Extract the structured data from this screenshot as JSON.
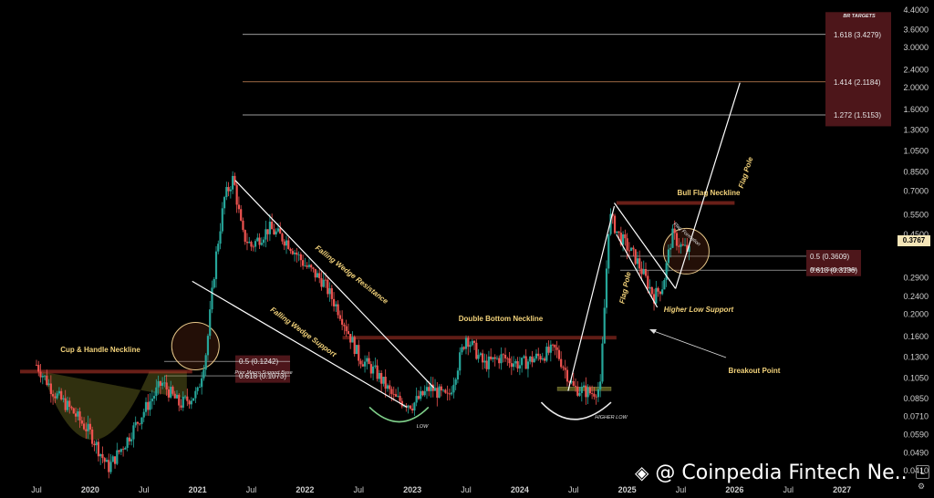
{
  "chart_data": {
    "type": "candlestick",
    "symbol_scale": "log",
    "y_ticks": [
      "4.4000",
      "3.6000",
      "3.0000",
      "2.4000",
      "2.0000",
      "1.6000",
      "1.3000",
      "1.0500",
      "0.8500",
      "0.7000",
      "0.5500",
      "0.4500",
      "0.2900",
      "0.2400",
      "0.2000",
      "0.1600",
      "0.1300",
      "0.1050",
      "0.0850",
      "0.0710",
      "0.0590",
      "0.0490",
      "0.0410"
    ],
    "y_range": [
      0.036,
      4.6
    ],
    "x_ticks": [
      "Jul",
      "2020",
      "Jul",
      "2021",
      "Jul",
      "2022",
      "Jul",
      "2023",
      "Jul",
      "2024",
      "Jul",
      "2025",
      "Jul",
      "2026",
      "Jul",
      "2027"
    ],
    "current_price": "0.3767",
    "price_path": [
      [
        "2019-07",
        0.12
      ],
      [
        "2019-09",
        0.09
      ],
      [
        "2019-11",
        0.075
      ],
      [
        "2020-01",
        0.06
      ],
      [
        "2020-03",
        0.042
      ],
      [
        "2020-05",
        0.055
      ],
      [
        "2020-07",
        0.075
      ],
      [
        "2020-09",
        0.1
      ],
      [
        "2020-11",
        0.08
      ],
      [
        "2021-01",
        0.09
      ],
      [
        "2021-02",
        0.14
      ],
      [
        "2021-03",
        0.35
      ],
      [
        "2021-04",
        0.65
      ],
      [
        "2021-05",
        0.8
      ],
      [
        "2021-06",
        0.45
      ],
      [
        "2021-07",
        0.4
      ],
      [
        "2021-09",
        0.48
      ],
      [
        "2021-11",
        0.42
      ],
      [
        "2022-01",
        0.33
      ],
      [
        "2022-03",
        0.28
      ],
      [
        "2022-05",
        0.2
      ],
      [
        "2022-07",
        0.13
      ],
      [
        "2022-09",
        0.11
      ],
      [
        "2022-11",
        0.085
      ],
      [
        "2023-01",
        0.08
      ],
      [
        "2023-03",
        0.095
      ],
      [
        "2023-05",
        0.085
      ],
      [
        "2023-07",
        0.16
      ],
      [
        "2023-09",
        0.12
      ],
      [
        "2023-11",
        0.13
      ],
      [
        "2024-01",
        0.12
      ],
      [
        "2024-03",
        0.13
      ],
      [
        "2024-05",
        0.14
      ],
      [
        "2024-07",
        0.095
      ],
      [
        "2024-09",
        0.09
      ],
      [
        "2024-10",
        0.095
      ],
      [
        "2024-11",
        0.55
      ],
      [
        "2024-12",
        0.45
      ],
      [
        "2025-02",
        0.35
      ],
      [
        "2025-04",
        0.24
      ],
      [
        "2025-05",
        0.27
      ],
      [
        "2025-06",
        0.45
      ],
      [
        "2025-07",
        0.4
      ],
      [
        "2025-08",
        0.3767
      ]
    ],
    "annotations": {
      "cup_handle": "Cup & Handle Neckline",
      "falling_resistance": "Falling Wedge Resistance",
      "falling_support": "Falling Wedge Support",
      "double_bottom": "Double Bottom Neckline",
      "bull_flag": "Bull Flag Neckline",
      "flag_pole_1": "Flag Pole",
      "flag_pole_2": "Flag Pole",
      "flag_formation": "Flag Formation",
      "higher_low_support": "Higher Low Support",
      "breakout": "Breakout Point",
      "low": "LOW",
      "higher_low": "HIGHER LOW",
      "prior_macro": "Prior Macro Support Base",
      "macro": "Macro Support Base",
      "br_targets": "BR TARGETS"
    },
    "fib_left": [
      {
        "label": "0.5 (0.1242)",
        "value": 0.1242
      },
      {
        "label": "0.618 (0.1073)",
        "value": 0.1073
      }
    ],
    "fib_right": [
      {
        "label": "0.5 (0.3609)",
        "value": 0.3609
      },
      {
        "label": "0.618 (0.3136)",
        "value": 0.3136
      }
    ],
    "targets": [
      {
        "label": "1.618 (3.4279)",
        "value": 3.4279
      },
      {
        "label": "1.414 (2.1184)",
        "value": 2.1184
      },
      {
        "label": "1.272 (1.5153)",
        "value": 1.5153
      }
    ]
  },
  "watermark": "@ Coinpedia Fintech Ne..",
  "axis_button": "L"
}
